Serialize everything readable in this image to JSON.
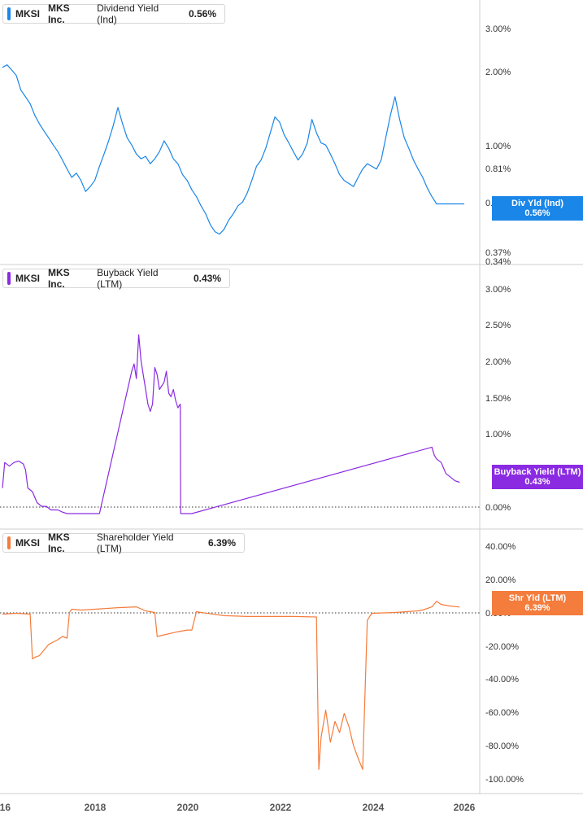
{
  "x_axis": {
    "ticks": [
      "016",
      "2018",
      "2020",
      "2022",
      "2024",
      "2026"
    ]
  },
  "panels": [
    {
      "id": "dividend",
      "legend": {
        "ticker": "MKSI",
        "company": "MKS Inc.",
        "metric": "Dividend Yield (Ind)",
        "value": "0.56%",
        "color": "#1a86e8"
      },
      "tag": {
        "label": "Div Yld (Ind)",
        "value": "0.56%",
        "color": "#1a86e8"
      },
      "y_ticks": [
        "3.00%",
        "2.00%",
        "1.00%",
        "0.81%",
        "0.5",
        "0.37%",
        "0.34%"
      ]
    },
    {
      "id": "buyback",
      "legend": {
        "ticker": "MKSI",
        "company": "MKS Inc.",
        "metric": "Buyback Yield (LTM)",
        "value": "0.43%",
        "color": "#8a2be2"
      },
      "tag": {
        "label": "Buyback Yield (LTM)",
        "value": "0.43%",
        "color": "#8a2be2"
      },
      "y_ticks": [
        "3.00%",
        "2.50%",
        "2.00%",
        "1.50%",
        "1.00%",
        "0.00%"
      ]
    },
    {
      "id": "shareholder",
      "legend": {
        "ticker": "MKSI",
        "company": "MKS Inc.",
        "metric": "Shareholder Yield (LTM)",
        "value": "6.39%",
        "color": "#f47c3c"
      },
      "tag": {
        "label": "Shr Yld (LTM)",
        "value": "6.39%",
        "color": "#f47c3c"
      },
      "y_ticks": [
        "40.00%",
        "20.00%",
        "0.00%",
        "-20.00%",
        "-40.00%",
        "-60.00%",
        "-80.00%",
        "-100.00%"
      ]
    }
  ],
  "chart_data": [
    {
      "type": "line",
      "metric": "Dividend Yield (Ind)",
      "yscale": "log",
      "ylim": [
        0.34,
        3.6
      ],
      "xlim": [
        2016.0,
        2026.3
      ],
      "series": [
        {
          "name": "Dividend Yield (Ind)",
          "color": "#1a86e8",
          "x": [
            2016.0,
            2016.1,
            2016.2,
            2016.3,
            2016.4,
            2016.5,
            2016.6,
            2016.7,
            2016.8,
            2016.9,
            2017.0,
            2017.1,
            2017.2,
            2017.3,
            2017.4,
            2017.5,
            2017.6,
            2017.7,
            2017.8,
            2017.9,
            2018.0,
            2018.1,
            2018.2,
            2018.3,
            2018.4,
            2018.5,
            2018.6,
            2018.7,
            2018.8,
            2018.9,
            2019.0,
            2019.1,
            2019.2,
            2019.3,
            2019.4,
            2019.5,
            2019.6,
            2019.7,
            2019.8,
            2019.9,
            2020.0,
            2020.1,
            2020.2,
            2020.3,
            2020.4,
            2020.5,
            2020.6,
            2020.7,
            2020.8,
            2020.9,
            2021.0,
            2021.1,
            2021.2,
            2021.3,
            2021.4,
            2021.5,
            2021.6,
            2021.7,
            2021.8,
            2021.9,
            2022.0,
            2022.1,
            2022.2,
            2022.3,
            2022.4,
            2022.5,
            2022.6,
            2022.7,
            2022.8,
            2022.9,
            2023.0,
            2023.1,
            2023.2,
            2023.3,
            2023.4,
            2023.5,
            2023.6,
            2023.7,
            2023.8,
            2023.9,
            2024.0,
            2024.1,
            2024.2,
            2024.3,
            2024.4,
            2024.5,
            2024.6,
            2024.7,
            2024.8,
            2024.9,
            2025.0,
            2025.1,
            2025.2,
            2025.3,
            2025.4,
            2025.5,
            2025.6,
            2025.7,
            2025.8,
            2025.9,
            2026.0
          ],
          "values": [
            2.05,
            2.1,
            2.0,
            1.9,
            1.65,
            1.55,
            1.45,
            1.3,
            1.2,
            1.12,
            1.05,
            0.98,
            0.92,
            0.85,
            0.78,
            0.72,
            0.75,
            0.7,
            0.63,
            0.66,
            0.7,
            0.8,
            0.9,
            1.02,
            1.18,
            1.4,
            1.2,
            1.05,
            0.98,
            0.9,
            0.86,
            0.88,
            0.82,
            0.86,
            0.92,
            1.02,
            0.95,
            0.86,
            0.82,
            0.74,
            0.7,
            0.64,
            0.6,
            0.55,
            0.51,
            0.46,
            0.43,
            0.42,
            0.44,
            0.48,
            0.51,
            0.55,
            0.57,
            0.62,
            0.7,
            0.8,
            0.85,
            0.95,
            1.1,
            1.28,
            1.22,
            1.08,
            1.0,
            0.92,
            0.85,
            0.9,
            1.0,
            1.25,
            1.1,
            1.0,
            0.98,
            0.9,
            0.82,
            0.74,
            0.7,
            0.68,
            0.66,
            0.72,
            0.78,
            0.82,
            0.8,
            0.78,
            0.85,
            1.05,
            1.3,
            1.55,
            1.25,
            1.05,
            0.95,
            0.85,
            0.78,
            0.72,
            0.65,
            0.6,
            0.56,
            0.56,
            0.56,
            0.56,
            0.56,
            0.56,
            0.56
          ]
        }
      ]
    },
    {
      "type": "line",
      "metric": "Buyback Yield (LTM)",
      "ylim": [
        -0.1,
        3.3
      ],
      "xlim": [
        2016.0,
        2026.3
      ],
      "series": [
        {
          "name": "Buyback Yield (LTM)",
          "color": "#8a2be2",
          "x": [
            2016.0,
            2016.05,
            2016.15,
            2016.25,
            2016.35,
            2016.45,
            2016.5,
            2016.55,
            2016.65,
            2016.75,
            2016.85,
            2016.95,
            2017.05,
            2017.2,
            2017.3,
            2017.4,
            2017.6,
            2017.8,
            2017.95,
            2018.05,
            2018.1,
            2018.8,
            2018.85,
            2018.9,
            2018.95,
            2019.0,
            2019.05,
            2019.1,
            2019.15,
            2019.2,
            2019.25,
            2019.3,
            2019.35,
            2019.4,
            2019.5,
            2019.55,
            2019.6,
            2019.65,
            2019.7,
            2019.75,
            2019.8,
            2019.85,
            2019.86,
            2019.9,
            2020.0,
            2020.1,
            2025.3,
            2025.35,
            2025.4,
            2025.5,
            2025.6,
            2025.7,
            2025.8,
            2025.9
          ],
          "values": [
            0.35,
            0.7,
            0.65,
            0.7,
            0.72,
            0.68,
            0.6,
            0.35,
            0.3,
            0.15,
            0.1,
            0.1,
            0.05,
            0.05,
            0.02,
            0.0,
            0.0,
            0.0,
            0.0,
            0.0,
            0.0,
            1.95,
            2.05,
            1.85,
            2.45,
            2.1,
            1.9,
            1.7,
            1.5,
            1.4,
            1.5,
            2.0,
            1.9,
            1.7,
            1.8,
            1.95,
            1.65,
            1.6,
            1.7,
            1.55,
            1.45,
            1.5,
            0.0,
            0.0,
            0.0,
            0.0,
            0.91,
            0.8,
            0.75,
            0.7,
            0.55,
            0.5,
            0.45,
            0.43
          ]
        }
      ]
    },
    {
      "type": "line",
      "metric": "Shareholder Yield (LTM)",
      "ylim": [
        -105,
        50
      ],
      "xlim": [
        2016.0,
        2026.3
      ],
      "series": [
        {
          "name": "Shareholder Yield (LTM)",
          "color": "#f47c3c",
          "x": [
            2016.0,
            2016.3,
            2016.6,
            2016.65,
            2016.7,
            2016.8,
            2017.0,
            2017.2,
            2017.3,
            2017.4,
            2017.45,
            2017.5,
            2017.7,
            2018.0,
            2018.5,
            2018.9,
            2019.1,
            2019.3,
            2019.35,
            2019.5,
            2019.8,
            2020.0,
            2020.1,
            2020.2,
            2020.3,
            2020.8,
            2021.3,
            2021.8,
            2022.3,
            2022.8,
            2022.85,
            2022.9,
            2023.0,
            2023.1,
            2023.2,
            2023.3,
            2023.4,
            2023.5,
            2023.6,
            2023.7,
            2023.8,
            2023.9,
            2023.95,
            2024.0,
            2024.5,
            2025.0,
            2025.1,
            2025.3,
            2025.4,
            2025.5,
            2025.7,
            2025.9
          ],
          "values": [
            2.0,
            2.5,
            2.0,
            -26.0,
            -25.0,
            -24.0,
            -17.0,
            -14.0,
            -12.0,
            -13.0,
            3.0,
            5.0,
            4.5,
            5.0,
            6.0,
            6.5,
            4.0,
            3.0,
            -12.0,
            -11.0,
            -9.0,
            -8.0,
            -8.0,
            3.5,
            3.0,
            1.0,
            0.5,
            0.5,
            0.5,
            0.2,
            -95.0,
            -75.0,
            -58.0,
            -78.0,
            -65.0,
            -72.0,
            -60.0,
            -68.0,
            -80.0,
            -88.0,
            -95.0,
            -2.0,
            0.5,
            2.5,
            3.0,
            4.0,
            4.5,
            6.5,
            10.0,
            8.0,
            7.0,
            6.39
          ]
        }
      ]
    }
  ]
}
